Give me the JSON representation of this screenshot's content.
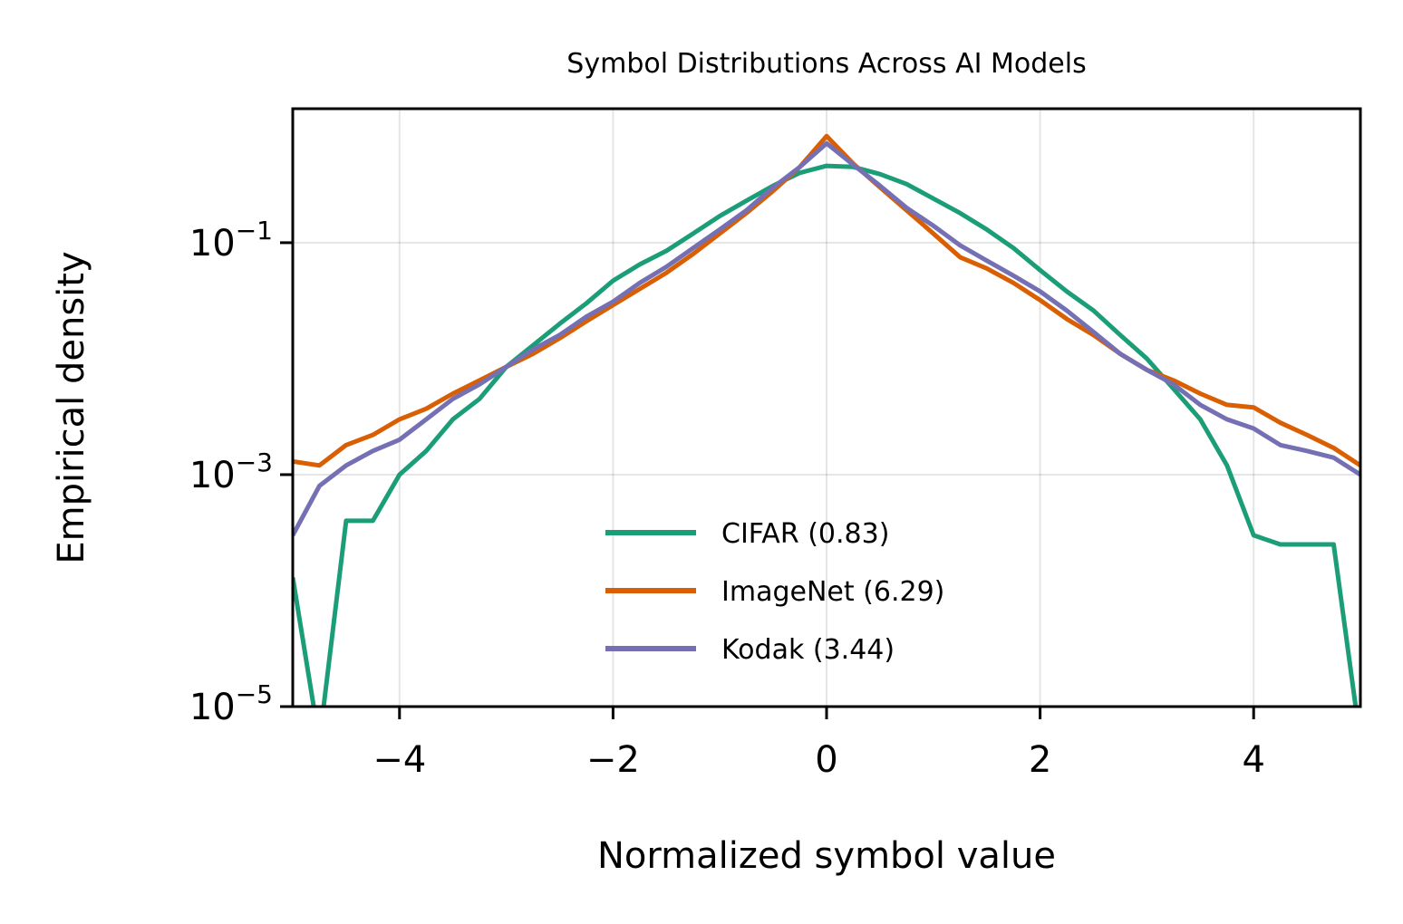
{
  "chart_data": {
    "type": "line",
    "title": "Symbol Distributions Across AI Models",
    "xlabel": "Normalized symbol value",
    "ylabel": "Empirical density",
    "xlim": [
      -5,
      5
    ],
    "ylim": [
      1e-05,
      1.43
    ],
    "yscale": "log",
    "grid": true,
    "legend_placement": "lower-center",
    "xticks": [
      -4,
      -2,
      0,
      2,
      4
    ],
    "xtick_labels": [
      "−4",
      "−2",
      "0",
      "2",
      "4"
    ],
    "yticks": [
      0.1,
      0.001,
      1e-05
    ],
    "ytick_labels": [
      {
        "base": "10",
        "exp": "−1"
      },
      {
        "base": "10",
        "exp": "−3"
      },
      {
        "base": "10",
        "exp": "−5"
      }
    ],
    "x": [
      -5,
      -4.75,
      -4.5,
      -4.25,
      -4,
      -3.75,
      -3.5,
      -3.25,
      -3,
      -2.75,
      -2.5,
      -2.25,
      -2,
      -1.75,
      -1.5,
      -1.25,
      -1,
      -0.75,
      -0.5,
      -0.25,
      0,
      0.25,
      0.5,
      0.75,
      1,
      1.25,
      1.5,
      1.75,
      2,
      2.25,
      2.5,
      2.75,
      3,
      3.25,
      3.5,
      3.75,
      4,
      4.25,
      4.5,
      4.75,
      5
    ],
    "series": [
      {
        "name": "CIFAR (0.83)",
        "color": "#1b9e77",
        "values": [
          0.00013,
          5e-06,
          0.0004,
          0.0004,
          0.001,
          0.0016,
          0.003,
          0.0045,
          0.0085,
          0.013,
          0.02,
          0.03,
          0.047,
          0.065,
          0.085,
          0.12,
          0.17,
          0.23,
          0.31,
          0.4,
          0.46,
          0.45,
          0.39,
          0.32,
          0.24,
          0.18,
          0.13,
          0.09,
          0.058,
          0.038,
          0.026,
          0.016,
          0.01,
          0.0055,
          0.003,
          0.0012,
          0.0003,
          0.00025,
          0.00025,
          0.00025,
          5e-06
        ]
      },
      {
        "name": "ImageNet (6.29)",
        "color": "#d95f02",
        "values": [
          0.0013,
          0.0012,
          0.0018,
          0.0022,
          0.003,
          0.0037,
          0.005,
          0.0065,
          0.0085,
          0.011,
          0.015,
          0.021,
          0.029,
          0.04,
          0.055,
          0.08,
          0.12,
          0.18,
          0.28,
          0.45,
          0.83,
          0.48,
          0.3,
          0.19,
          0.12,
          0.075,
          0.06,
          0.045,
          0.032,
          0.022,
          0.016,
          0.011,
          0.008,
          0.0065,
          0.005,
          0.004,
          0.0038,
          0.0028,
          0.0022,
          0.0017,
          0.0012
        ]
      },
      {
        "name": "Kodak (3.44)",
        "color": "#7570b3",
        "values": [
          0.0003,
          0.0008,
          0.0012,
          0.0016,
          0.002,
          0.003,
          0.0045,
          0.006,
          0.0085,
          0.012,
          0.016,
          0.023,
          0.031,
          0.045,
          0.062,
          0.09,
          0.13,
          0.19,
          0.3,
          0.45,
          0.72,
          0.47,
          0.31,
          0.2,
          0.14,
          0.095,
          0.07,
          0.052,
          0.038,
          0.026,
          0.017,
          0.011,
          0.008,
          0.006,
          0.004,
          0.003,
          0.0025,
          0.0018,
          0.0016,
          0.0014,
          0.001
        ]
      }
    ]
  }
}
